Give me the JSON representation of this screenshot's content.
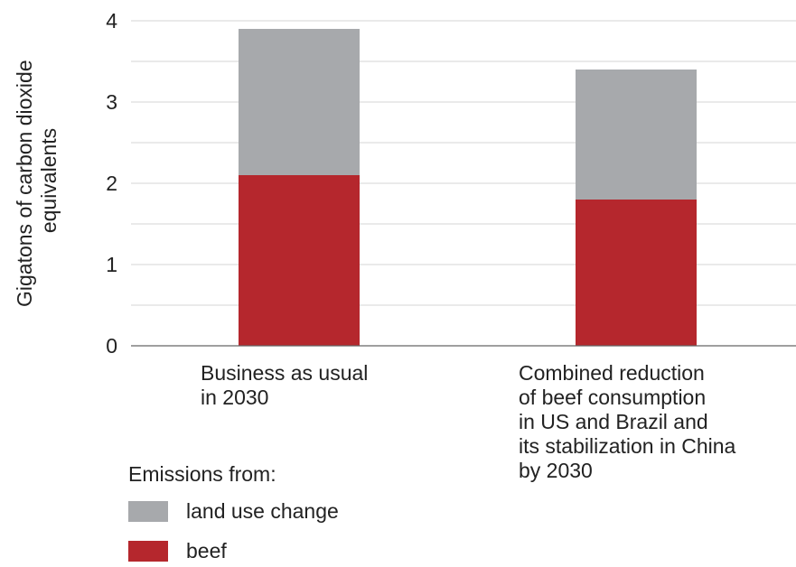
{
  "chart_data": {
    "type": "bar",
    "stacked": true,
    "categories": [
      "Business as usual\nin 2030",
      "Combined reduction\nof beef consumption\nin US and Brazil and\nits stabilization in China\nby 2030"
    ],
    "series": [
      {
        "name": "beef",
        "values": [
          2.1,
          1.8
        ],
        "color": "#b5272d"
      },
      {
        "name": "land use change",
        "values": [
          1.8,
          1.6
        ],
        "color": "#a7a9ac"
      }
    ],
    "ylabel": [
      "Gigatons of carbon dioxide",
      "equivalents"
    ],
    "yticks": [
      0,
      1,
      2,
      3,
      4
    ],
    "ylim": [
      0,
      4
    ],
    "grid": true,
    "legend": {
      "title": "Emissions from:",
      "placement": "bottom-left",
      "order": [
        "land use change",
        "beef"
      ]
    }
  }
}
